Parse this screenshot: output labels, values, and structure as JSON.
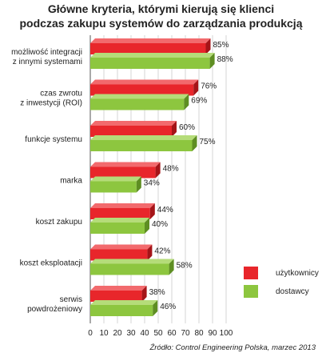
{
  "title_line1": "Główne kryteria, którymi kierują się klienci",
  "title_line2": "podczas zakupu systemów do zarządzania produkcją",
  "source": "Źródło: Control Engineering Polska, marzec 2013",
  "colors": {
    "uzytkownicy_front": "#e8262b",
    "uzytkownicy_side": "#a51418",
    "uzytkownicy_top": "#f26a6d",
    "dostawcy_front": "#8dc63f",
    "dostawcy_side": "#5e8e22",
    "dostawcy_top": "#b5dc79",
    "grid": "#bbbbbb"
  },
  "chart_data": {
    "type": "bar",
    "orientation": "horizontal",
    "title": "Główne kryteria, którymi kierują się klienci podczas zakupu systemów do zarządzania produkcją",
    "categories": [
      [
        "możliwość integracji",
        "z innymi systemami"
      ],
      [
        "czas zwrotu",
        "z inwestycji (ROI)"
      ],
      [
        "funkcje systemu"
      ],
      [
        "marka"
      ],
      [
        "koszt zakupu"
      ],
      [
        "koszt eksploatacji"
      ],
      [
        "serwis",
        "powdrożeniowy"
      ]
    ],
    "series": [
      {
        "name": "użytkownicy",
        "values": [
          85,
          76,
          60,
          48,
          44,
          42,
          38
        ],
        "labels": [
          "85%",
          "76%",
          "60%",
          "48%",
          "44%",
          "42%",
          "38%"
        ]
      },
      {
        "name": "dostawcy",
        "values": [
          88,
          69,
          75,
          34,
          40,
          58,
          46
        ],
        "labels": [
          "88%",
          "69%",
          "75%",
          "34%",
          "40%",
          "58%",
          "46%"
        ]
      }
    ],
    "xlim": [
      0,
      100
    ],
    "xticks": [
      "0",
      "10",
      "20",
      "30",
      "40",
      "50",
      "60",
      "70",
      "80",
      "90",
      "100"
    ],
    "grid": true,
    "legend_position": "right"
  }
}
